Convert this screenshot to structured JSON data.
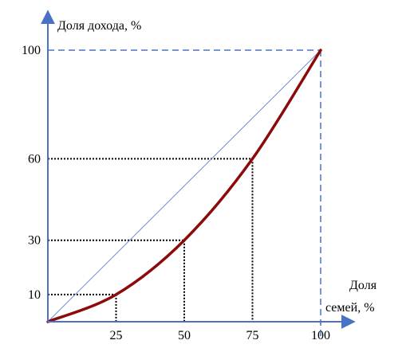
{
  "chart_data": {
    "type": "line",
    "ylabel": "Доля дохода, %",
    "xlabel_lines": [
      "Доля",
      "семей, %"
    ],
    "x_ticks": [
      25,
      50,
      75,
      100
    ],
    "y_ticks": [
      10,
      30,
      60,
      100
    ],
    "xlim": [
      0,
      100
    ],
    "ylim": [
      0,
      100
    ],
    "series": [
      {
        "role": "equality-line",
        "x": [
          0,
          100
        ],
        "y": [
          0,
          100
        ],
        "color": "#6a8ecf"
      },
      {
        "role": "lorenz-curve",
        "x": [
          0,
          25,
          50,
          75,
          100
        ],
        "y": [
          0,
          10,
          30,
          60,
          100
        ],
        "color": "#8b0a0a"
      }
    ],
    "guides": [
      {
        "x": 25,
        "y": 10
      },
      {
        "x": 50,
        "y": 30
      },
      {
        "x": 75,
        "y": 60
      }
    ],
    "axis_color": "#4a72c4"
  }
}
